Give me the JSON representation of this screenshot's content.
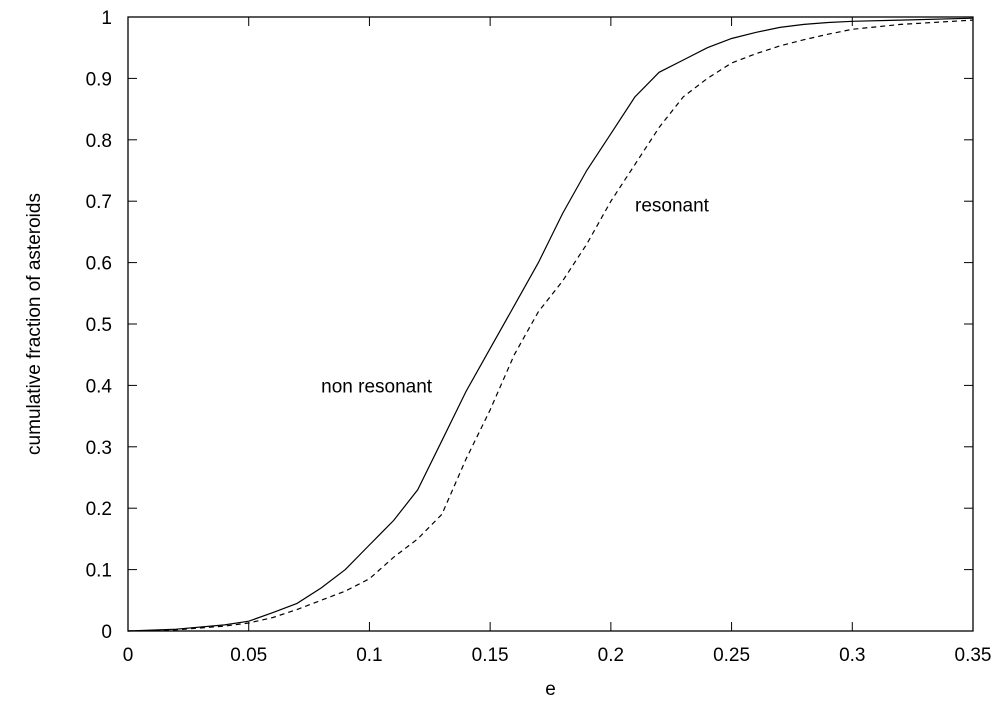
{
  "chart_data": {
    "type": "line",
    "xlabel": "e",
    "ylabel": "cumulative fraction of asteroids",
    "xlim": [
      0,
      0.35
    ],
    "ylim": [
      0,
      1
    ],
    "grid": false,
    "legend": "none",
    "x_ticks": [
      "0",
      "0.05",
      "0.1",
      "0.15",
      "0.2",
      "0.25",
      "0.3",
      "0.35"
    ],
    "y_ticks": [
      "0",
      "0.1",
      "0.2",
      "0.3",
      "0.4",
      "0.5",
      "0.6",
      "0.7",
      "0.8",
      "0.9",
      "1"
    ],
    "annotations": [
      {
        "text": "non resonant",
        "x": 0.08,
        "y": 0.4
      },
      {
        "text": "resonant",
        "x": 0.21,
        "y": 0.695
      }
    ],
    "series": [
      {
        "style": "solid",
        "color": "#000000",
        "x": [
          0,
          0.02,
          0.04,
          0.05,
          0.06,
          0.07,
          0.08,
          0.09,
          0.1,
          0.11,
          0.12,
          0.13,
          0.14,
          0.15,
          0.16,
          0.17,
          0.18,
          0.19,
          0.2,
          0.21,
          0.22,
          0.23,
          0.24,
          0.25,
          0.26,
          0.27,
          0.28,
          0.29,
          0.3,
          0.32,
          0.35
        ],
        "y": [
          0,
          0.003,
          0.01,
          0.016,
          0.03,
          0.045,
          0.07,
          0.1,
          0.14,
          0.18,
          0.23,
          0.31,
          0.39,
          0.46,
          0.53,
          0.6,
          0.68,
          0.75,
          0.81,
          0.87,
          0.91,
          0.93,
          0.95,
          0.965,
          0.975,
          0.983,
          0.988,
          0.991,
          0.993,
          0.995,
          0.998
        ]
      },
      {
        "style": "dashed",
        "color": "#000000",
        "x": [
          0,
          0.02,
          0.04,
          0.05,
          0.06,
          0.07,
          0.08,
          0.09,
          0.1,
          0.11,
          0.12,
          0.13,
          0.14,
          0.15,
          0.16,
          0.17,
          0.18,
          0.19,
          0.2,
          0.21,
          0.22,
          0.23,
          0.24,
          0.25,
          0.26,
          0.27,
          0.28,
          0.29,
          0.3,
          0.32,
          0.35
        ],
        "y": [
          0,
          0.002,
          0.008,
          0.013,
          0.022,
          0.035,
          0.05,
          0.065,
          0.085,
          0.12,
          0.15,
          0.19,
          0.28,
          0.36,
          0.45,
          0.52,
          0.57,
          0.63,
          0.7,
          0.76,
          0.82,
          0.87,
          0.9,
          0.925,
          0.94,
          0.953,
          0.963,
          0.972,
          0.98,
          0.988,
          0.995
        ]
      }
    ]
  }
}
